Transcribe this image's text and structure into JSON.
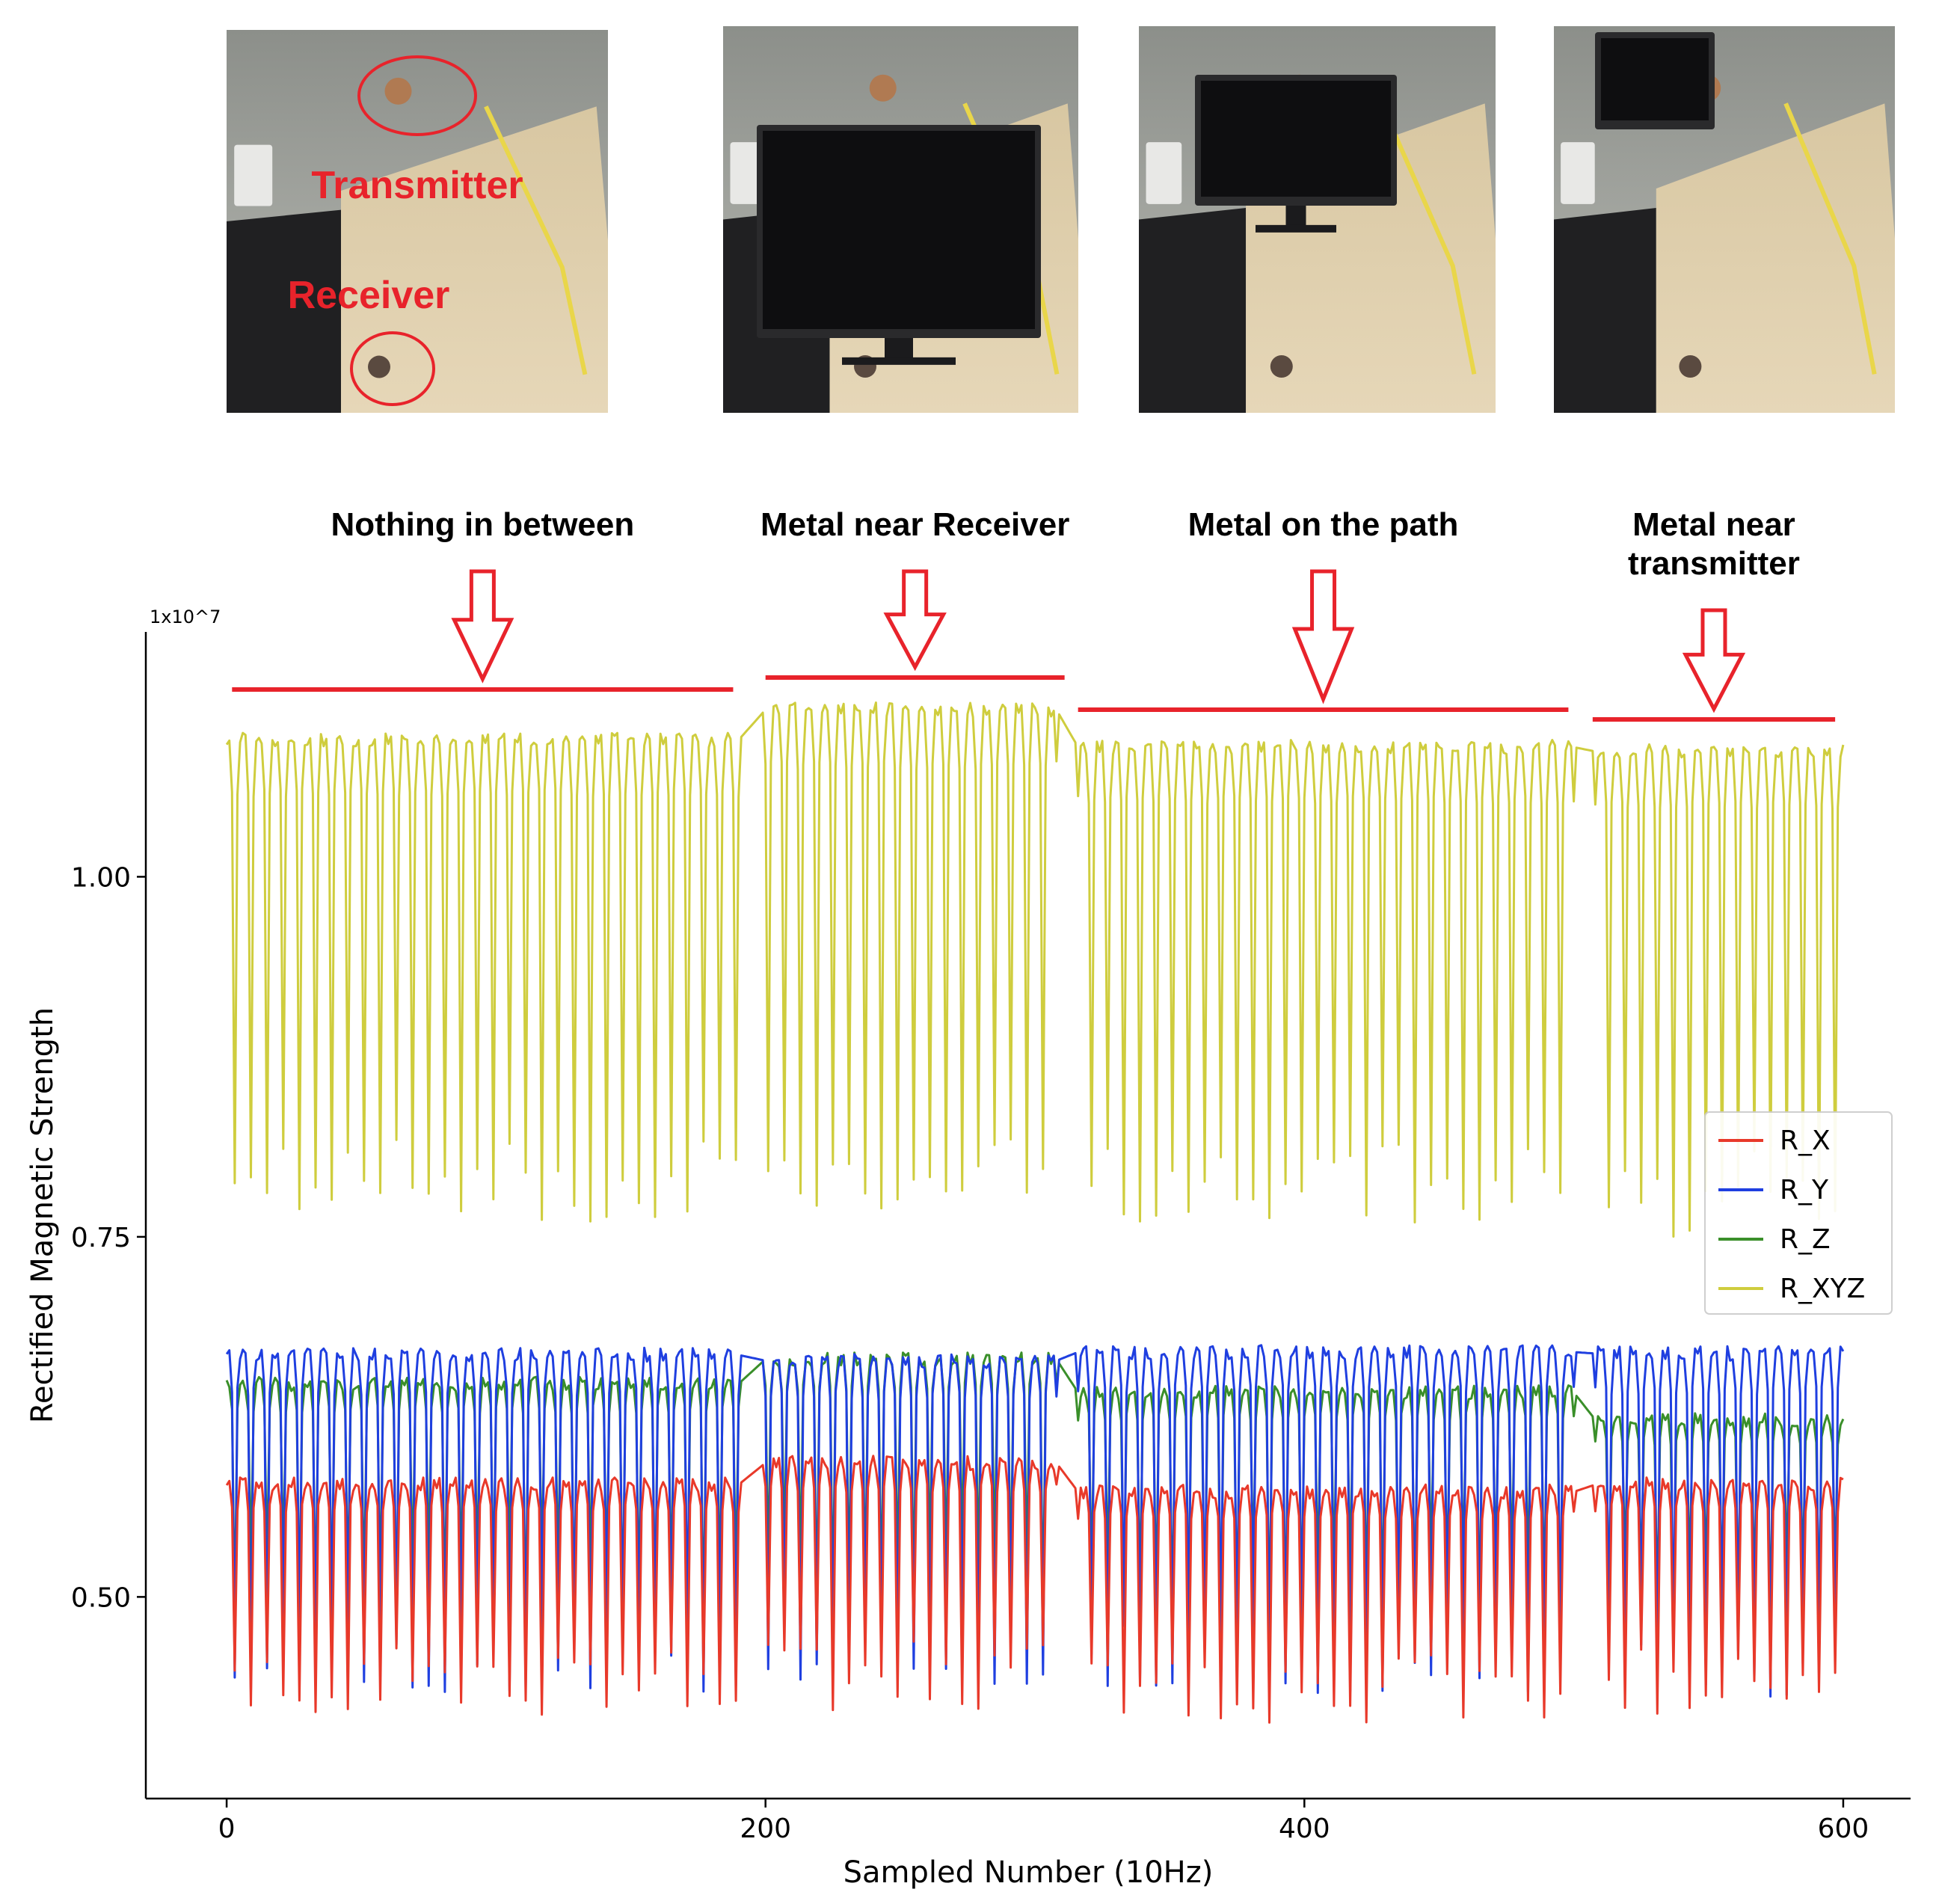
{
  "photos": [
    {
      "caption_top": "Transmitter",
      "caption_bottom": "Receiver"
    },
    {
      "caption_top": "",
      "caption_bottom": ""
    },
    {
      "caption_top": "",
      "caption_bottom": ""
    },
    {
      "caption_top": "",
      "caption_bottom": ""
    }
  ],
  "annotations": [
    {
      "lines": [
        "Nothing in between"
      ],
      "x_range": [
        2,
        188
      ]
    },
    {
      "lines": [
        "Metal near Receiver"
      ],
      "x_range": [
        200,
        311
      ]
    },
    {
      "lines": [
        "Metal on the path"
      ],
      "x_range": [
        316,
        498
      ]
    },
    {
      "lines": [
        "Metal near",
        "transmitter"
      ],
      "x_range": [
        507,
        597
      ]
    }
  ],
  "colors": {
    "R_X": "#e8392a",
    "R_Y": "#1f3fe0",
    "R_Z": "#3a8f2a",
    "R_XYZ": "#cfcd3e",
    "annotation": "#e8232b"
  },
  "chart_data": {
    "type": "line",
    "title": "",
    "xlabel": "Sampled Number (10Hz)",
    "ylabel": "Rectified Magnetic Strength",
    "y_multiplier_label": "1x10^7",
    "xlim": [
      -30,
      625
    ],
    "ylim": [
      0.36,
      1.17
    ],
    "xticks": [
      0,
      200,
      400,
      600
    ],
    "xtick_labels": [
      "0",
      "200",
      "400",
      "600"
    ],
    "yticks": [
      0.5,
      0.75,
      1.0
    ],
    "ytick_labels": [
      "0.50",
      "0.75",
      "1.00"
    ],
    "grid": false,
    "legend_position": "right",
    "x_range": [
      0,
      600
    ],
    "dip_period": 6,
    "segments": [
      {
        "x_range": [
          0,
          190
        ],
        "R_X": 0.578,
        "R_Y": 0.668,
        "R_Z": 0.648,
        "R_XYZ": 1.095,
        "R_X_dip": 0.44,
        "R_Y_dip": 0.455,
        "R_Z_dip": 0.5,
        "R_XYZ_dip": 0.79
      },
      {
        "x_range": [
          200,
          308
        ],
        "R_X": 0.593,
        "R_Y": 0.664,
        "R_Z": 0.665,
        "R_XYZ": 1.116,
        "R_X_dip": 0.445,
        "R_Y_dip": 0.46,
        "R_Z_dip": 0.505,
        "R_XYZ_dip": 0.795
      },
      {
        "x_range": [
          316,
          500
        ],
        "R_X": 0.573,
        "R_Y": 0.67,
        "R_Z": 0.642,
        "R_XYZ": 1.09,
        "R_X_dip": 0.435,
        "R_Y_dip": 0.455,
        "R_Z_dip": 0.5,
        "R_XYZ_dip": 0.785
      },
      {
        "x_range": [
          508,
          600
        ],
        "R_X": 0.578,
        "R_Y": 0.669,
        "R_Z": 0.623,
        "R_XYZ": 1.087,
        "R_X_dip": 0.44,
        "R_Y_dip": 0.455,
        "R_Z_dip": 0.5,
        "R_XYZ_dip": 0.78
      }
    ],
    "series": [
      {
        "name": "R_X"
      },
      {
        "name": "R_Y"
      },
      {
        "name": "R_Z"
      },
      {
        "name": "R_XYZ"
      }
    ]
  }
}
